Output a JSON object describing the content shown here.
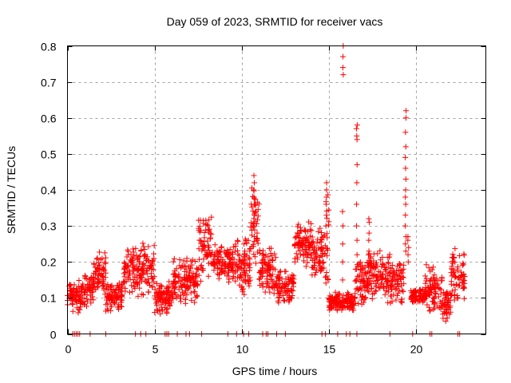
{
  "chart_data": {
    "type": "scatter",
    "title": "Day 059 of 2023, SRMTID for receiver vacs",
    "xlabel": "GPS time / hours",
    "ylabel": "SRMTID / TECUs",
    "xlim": [
      0,
      24
    ],
    "ylim": [
      0,
      0.8
    ],
    "xticks": [
      0,
      5,
      10,
      15,
      20
    ],
    "xtick_labels": [
      "0",
      "5",
      "10",
      "15",
      "20"
    ],
    "yticks": [
      0,
      0.1,
      0.2,
      0.3,
      0.4,
      0.5,
      0.6,
      0.7,
      0.8
    ],
    "ytick_labels": [
      "0",
      "0.1",
      "0.2",
      "0.3",
      "0.4",
      "0.5",
      "0.6",
      "0.7",
      "0.8"
    ],
    "grid": true,
    "legend": "none",
    "marker": "plus",
    "color": "#ff0000",
    "series": [
      {
        "name": "SRMTID",
        "envelope": [
          {
            "x": [
              0.0,
              0.8
            ],
            "y": [
              0.05,
              0.16
            ]
          },
          {
            "x": [
              0.8,
              1.5
            ],
            "y": [
              0.07,
              0.18
            ]
          },
          {
            "x": [
              1.5,
              2.2
            ],
            "y": [
              0.1,
              0.23
            ]
          },
          {
            "x": [
              2.2,
              3.2
            ],
            "y": [
              0.06,
              0.15
            ]
          },
          {
            "x": [
              3.2,
              4.2
            ],
            "y": [
              0.1,
              0.25
            ]
          },
          {
            "x": [
              4.2,
              5.0
            ],
            "y": [
              0.1,
              0.27
            ]
          },
          {
            "x": [
              5.0,
              6.0
            ],
            "y": [
              0.05,
              0.15
            ]
          },
          {
            "x": [
              6.0,
              7.5
            ],
            "y": [
              0.08,
              0.22
            ]
          },
          {
            "x": [
              7.5,
              8.3
            ],
            "y": [
              0.14,
              0.34
            ]
          },
          {
            "x": [
              8.3,
              9.5
            ],
            "y": [
              0.14,
              0.25
            ]
          },
          {
            "x": [
              9.5,
              10.5
            ],
            "y": [
              0.1,
              0.27
            ]
          },
          {
            "x": [
              10.5,
              11.0
            ],
            "y": [
              0.18,
              0.44
            ]
          },
          {
            "x": [
              11.0,
              12.0
            ],
            "y": [
              0.1,
              0.25
            ]
          },
          {
            "x": [
              12.0,
              13.0
            ],
            "y": [
              0.08,
              0.18
            ]
          },
          {
            "x": [
              13.0,
              14.0
            ],
            "y": [
              0.18,
              0.32
            ]
          },
          {
            "x": [
              14.0,
              14.8
            ],
            "y": [
              0.15,
              0.3
            ]
          },
          {
            "x": [
              14.8,
              15.0
            ],
            "y": [
              0.1,
              0.42
            ]
          },
          {
            "x": [
              15.0,
              16.5
            ],
            "y": [
              0.06,
              0.12
            ]
          },
          {
            "x": [
              16.5,
              17.2
            ],
            "y": [
              0.07,
              0.22
            ]
          },
          {
            "x": [
              17.2,
              18.5
            ],
            "y": [
              0.08,
              0.24
            ]
          },
          {
            "x": [
              18.5,
              19.3
            ],
            "y": [
              0.07,
              0.22
            ]
          },
          {
            "x": [
              19.7,
              20.5
            ],
            "y": [
              0.08,
              0.13
            ]
          },
          {
            "x": [
              20.5,
              21.5
            ],
            "y": [
              0.05,
              0.2
            ]
          },
          {
            "x": [
              21.5,
              22.0
            ],
            "y": [
              0.03,
              0.12
            ]
          },
          {
            "x": [
              22.0,
              22.8
            ],
            "y": [
              0.08,
              0.24
            ]
          }
        ],
        "spikes": [
          {
            "x": 10.7,
            "y": [
              0.3,
              0.33,
              0.36,
              0.38,
              0.4,
              0.42,
              0.44
            ]
          },
          {
            "x": 14.85,
            "y": [
              0.3,
              0.33,
              0.36,
              0.38,
              0.4,
              0.42
            ]
          },
          {
            "x": 15.8,
            "y": [
              0.15,
              0.2,
              0.25,
              0.3,
              0.34,
              0.72,
              0.74,
              0.77,
              0.8
            ]
          },
          {
            "x": 16.6,
            "y": [
              0.15,
              0.18,
              0.22,
              0.26,
              0.3,
              0.36,
              0.42,
              0.47,
              0.54,
              0.55,
              0.57,
              0.58
            ]
          },
          {
            "x": 17.3,
            "y": [
              0.2,
              0.23,
              0.26,
              0.28,
              0.31,
              0.32
            ]
          },
          {
            "x": 19.4,
            "y": [
              0.23,
              0.25,
              0.27,
              0.3,
              0.33,
              0.36,
              0.38,
              0.4,
              0.43,
              0.46,
              0.49,
              0.52,
              0.56,
              0.6,
              0.62
            ]
          },
          {
            "x": 19.55,
            "y": [
              0.2,
              0.22,
              0.24,
              0.26,
              0.27
            ]
          }
        ],
        "zero_points_x": [
          0.3,
          0.4,
          0.5,
          0.6,
          0.7,
          1.3,
          2.2,
          3.9,
          4.2,
          4.5,
          5.6,
          5.7,
          5.8,
          6.3,
          6.8,
          7.0,
          7.7,
          9.2,
          9.7,
          10.1,
          10.4,
          11.2,
          11.4,
          11.5,
          12.0,
          12.5,
          14.6,
          14.8,
          15.5,
          16.0,
          16.2,
          16.6,
          18.5,
          19.8,
          20.8,
          20.9,
          22.4,
          22.5
        ]
      }
    ]
  }
}
